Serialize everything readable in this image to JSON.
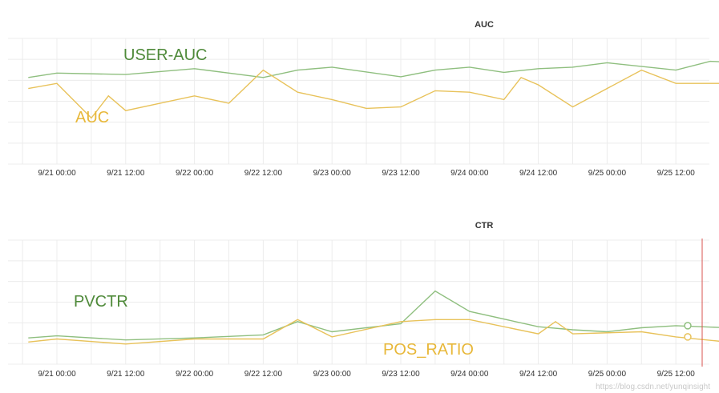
{
  "chart_data": [
    {
      "type": "line",
      "title": "AUC",
      "x": [
        "9/21 00:00",
        "9/21 06:00",
        "9/21 12:00",
        "9/21 18:00",
        "9/22 00:00",
        "9/22 06:00",
        "9/22 12:00",
        "9/22 18:00",
        "9/23 00:00",
        "9/23 06:00",
        "9/23 12:00",
        "9/23 18:00",
        "9/24 00:00",
        "9/24 06:00",
        "9/24 12:00",
        "9/24 18:00",
        "9/25 00:00",
        "9/25 06:00",
        "9/25 12:00",
        "9/25 18:00"
      ],
      "tick_labels": [
        "9/21 00:00",
        "9/21 12:00",
        "9/22 00:00",
        "9/22 12:00",
        "9/23 00:00",
        "9/23 12:00",
        "9/24 00:00",
        "9/24 12:00",
        "9/25 00:00",
        "9/25 12:00"
      ],
      "grid": true,
      "colors": {
        "USER-AUC": "#8fbf7f",
        "AUC": "#e8c25a"
      },
      "series": [
        {
          "name": "USER-AUC",
          "color": "#8fbf7f",
          "points": [
            [
              "9/20 19:00",
              0.6
            ],
            [
              "9/21 00:00",
              0.66
            ],
            [
              "9/21 12:00",
              0.64
            ],
            [
              "9/22 00:00",
              0.72
            ],
            [
              "9/22 12:00",
              0.6
            ],
            [
              "9/22 18:00",
              0.7
            ],
            [
              "9/23 00:00",
              0.74
            ],
            [
              "9/23 12:00",
              0.61
            ],
            [
              "9/23 18:00",
              0.7
            ],
            [
              "9/24 00:00",
              0.74
            ],
            [
              "9/24 06:00",
              0.67
            ],
            [
              "9/24 12:00",
              0.72
            ],
            [
              "9/24 18:00",
              0.74
            ],
            [
              "9/25 00:00",
              0.8
            ],
            [
              "9/25 12:00",
              0.7
            ],
            [
              "9/25 18:00",
              0.82
            ],
            [
              "9/25 21:00",
              0.81
            ]
          ]
        },
        {
          "name": "AUC",
          "color": "#e8c25a",
          "points": [
            [
              "9/20 19:00",
              0.45
            ],
            [
              "9/21 00:00",
              0.52
            ],
            [
              "9/21 06:00",
              0.05
            ],
            [
              "9/21 09:00",
              0.35
            ],
            [
              "9/21 12:00",
              0.15
            ],
            [
              "9/22 00:00",
              0.35
            ],
            [
              "9/22 06:00",
              0.25
            ],
            [
              "9/22 12:00",
              0.7
            ],
            [
              "9/22 18:00",
              0.4
            ],
            [
              "9/23 00:00",
              0.3
            ],
            [
              "9/23 06:00",
              0.18
            ],
            [
              "9/23 12:00",
              0.2
            ],
            [
              "9/23 18:00",
              0.42
            ],
            [
              "9/24 00:00",
              0.4
            ],
            [
              "9/24 06:00",
              0.3
            ],
            [
              "9/24 09:00",
              0.6
            ],
            [
              "9/24 12:00",
              0.5
            ],
            [
              "9/24 18:00",
              0.2
            ],
            [
              "9/25 06:00",
              0.7
            ],
            [
              "9/25 12:00",
              0.52
            ],
            [
              "9/25 21:00",
              0.52
            ]
          ]
        }
      ],
      "annotations": [
        {
          "text": "USER-AUC",
          "color": "#4f8a3a"
        },
        {
          "text": "AUC",
          "color": "#e8b83a"
        }
      ]
    },
    {
      "type": "line",
      "title": "CTR",
      "x": [
        "9/21 00:00",
        "9/21 06:00",
        "9/21 12:00",
        "9/21 18:00",
        "9/22 00:00",
        "9/22 06:00",
        "9/22 12:00",
        "9/22 18:00",
        "9/23 00:00",
        "9/23 06:00",
        "9/23 12:00",
        "9/23 18:00",
        "9/24 00:00",
        "9/24 06:00",
        "9/24 12:00",
        "9/24 18:00",
        "9/25 00:00",
        "9/25 06:00",
        "9/25 12:00",
        "9/25 18:00"
      ],
      "tick_labels": [
        "9/21 00:00",
        "9/21 12:00",
        "9/22 00:00",
        "9/22 12:00",
        "9/23 00:00",
        "9/23 12:00",
        "9/24 00:00",
        "9/24 12:00",
        "9/25 00:00",
        "9/25 12:00"
      ],
      "grid": true,
      "colors": {
        "PVCTR": "#8fbf7f",
        "POS_RATIO": "#e8c25a"
      },
      "series": [
        {
          "name": "PVCTR",
          "color": "#8fbf7f",
          "points": [
            [
              "9/20 19:00",
              0.04
            ],
            [
              "9/21 00:00",
              0.06
            ],
            [
              "9/21 12:00",
              0.02
            ],
            [
              "9/22 00:00",
              0.04
            ],
            [
              "9/22 12:00",
              0.07
            ],
            [
              "9/22 18:00",
              0.2
            ],
            [
              "9/23 00:00",
              0.1
            ],
            [
              "9/23 12:00",
              0.18
            ],
            [
              "9/23 18:00",
              0.5
            ],
            [
              "9/24 00:00",
              0.3
            ],
            [
              "9/24 12:00",
              0.15
            ],
            [
              "9/24 18:00",
              0.12
            ],
            [
              "9/25 00:00",
              0.1
            ],
            [
              "9/25 06:00",
              0.14
            ],
            [
              "9/25 12:00",
              0.16
            ],
            [
              "9/25 21:00",
              0.14
            ]
          ]
        },
        {
          "name": "POS_RATIO",
          "color": "#e8c25a",
          "points": [
            [
              "9/20 19:00",
              0.0
            ],
            [
              "9/21 00:00",
              0.03
            ],
            [
              "9/21 12:00",
              -0.02
            ],
            [
              "9/22 00:00",
              0.03
            ],
            [
              "9/22 12:00",
              0.03
            ],
            [
              "9/22 18:00",
              0.22
            ],
            [
              "9/23 00:00",
              0.05
            ],
            [
              "9/23 12:00",
              0.2
            ],
            [
              "9/23 18:00",
              0.22
            ],
            [
              "9/24 00:00",
              0.22
            ],
            [
              "9/24 12:00",
              0.08
            ],
            [
              "9/24 15:00",
              0.2
            ],
            [
              "9/24 18:00",
              0.08
            ],
            [
              "9/25 06:00",
              0.1
            ],
            [
              "9/25 12:00",
              0.05
            ],
            [
              "9/25 21:00",
              0.0
            ]
          ]
        }
      ],
      "annotations": [
        {
          "text": "PVCTR",
          "color": "#4f8a3a"
        },
        {
          "text": "POS_RATIO",
          "color": "#e8b83a"
        }
      ],
      "cursor_marker": {
        "color": "#d9534f"
      }
    }
  ],
  "watermark": "https://blog.csdn.net/yunqinsight"
}
